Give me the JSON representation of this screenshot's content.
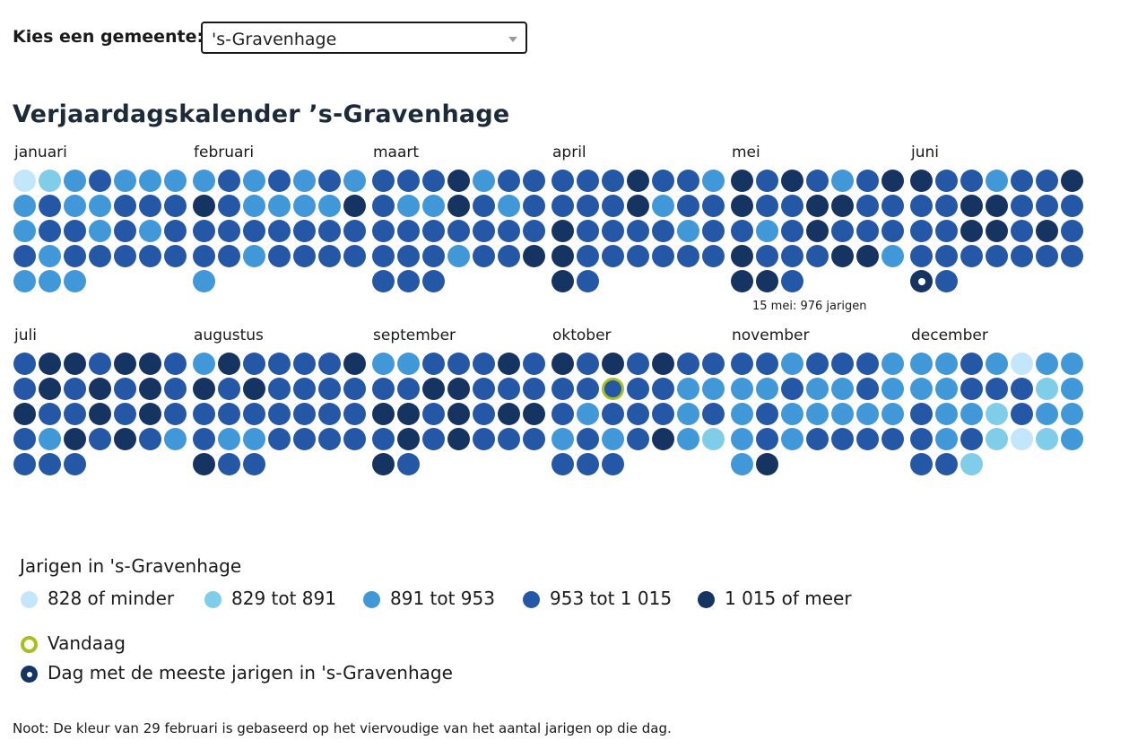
{
  "selector": {
    "label": "Kies een gemeente:",
    "value": "'s-Gravenhage"
  },
  "title": "Verjaardagskalender ’s-Gravenhage",
  "colors": {
    "c1": "#c3e6fb",
    "c2": "#7fcde9",
    "c3": "#4198d8",
    "c4": "#2457a6",
    "c5": "#163461",
    "today": "#a6c11d"
  },
  "today": {
    "month": 10,
    "day": 10
  },
  "max_day": {
    "month": 6,
    "day": 29
  },
  "tooltip": "15 mei: 976 jarigen",
  "months": [
    {
      "name": "januari",
      "days": [
        1,
        2,
        3,
        4,
        3,
        3,
        3,
        3,
        4,
        3,
        3,
        4,
        4,
        4,
        3,
        4,
        4,
        3,
        4,
        3,
        4,
        4,
        3,
        4,
        4,
        4,
        4,
        4,
        3,
        3,
        3
      ]
    },
    {
      "name": "februari",
      "days": [
        3,
        4,
        3,
        4,
        3,
        4,
        3,
        5,
        4,
        3,
        3,
        3,
        3,
        5,
        4,
        4,
        4,
        4,
        4,
        4,
        4,
        4,
        4,
        3,
        4,
        4,
        4,
        4,
        3
      ]
    },
    {
      "name": "maart",
      "days": [
        4,
        4,
        4,
        5,
        3,
        4,
        4,
        4,
        3,
        3,
        5,
        4,
        3,
        4,
        4,
        4,
        4,
        4,
        4,
        4,
        4,
        4,
        4,
        4,
        3,
        4,
        4,
        5,
        4,
        4,
        4
      ]
    },
    {
      "name": "april",
      "days": [
        4,
        4,
        4,
        5,
        4,
        4,
        3,
        4,
        4,
        4,
        5,
        3,
        4,
        4,
        5,
        4,
        4,
        4,
        4,
        3,
        4,
        5,
        4,
        4,
        4,
        4,
        4,
        4,
        5,
        4
      ]
    },
    {
      "name": "mei",
      "days": [
        5,
        4,
        5,
        4,
        3,
        4,
        5,
        5,
        4,
        4,
        5,
        5,
        4,
        4,
        4,
        3,
        4,
        5,
        4,
        4,
        4,
        5,
        4,
        4,
        4,
        5,
        5,
        3,
        5,
        5,
        4
      ]
    },
    {
      "name": "juni",
      "days": [
        5,
        4,
        4,
        3,
        4,
        4,
        5,
        4,
        4,
        5,
        5,
        4,
        4,
        4,
        4,
        4,
        5,
        5,
        4,
        5,
        4,
        4,
        4,
        4,
        4,
        4,
        4,
        4,
        5,
        4
      ]
    },
    {
      "name": "juli",
      "days": [
        4,
        5,
        5,
        4,
        5,
        5,
        4,
        4,
        5,
        4,
        5,
        4,
        5,
        4,
        5,
        4,
        4,
        5,
        4,
        5,
        4,
        4,
        3,
        5,
        4,
        5,
        4,
        3,
        4,
        4,
        4
      ]
    },
    {
      "name": "augustus",
      "days": [
        3,
        5,
        4,
        4,
        4,
        4,
        5,
        5,
        4,
        5,
        4,
        4,
        4,
        4,
        4,
        4,
        4,
        4,
        4,
        4,
        4,
        4,
        3,
        3,
        4,
        4,
        4,
        4,
        5,
        4,
        4
      ]
    },
    {
      "name": "september",
      "days": [
        3,
        3,
        4,
        4,
        4,
        5,
        4,
        4,
        4,
        5,
        5,
        4,
        4,
        4,
        5,
        5,
        4,
        5,
        4,
        5,
        5,
        4,
        5,
        4,
        5,
        4,
        4,
        4,
        5,
        4
      ]
    },
    {
      "name": "oktober",
      "days": [
        5,
        4,
        5,
        4,
        5,
        4,
        4,
        4,
        4,
        4,
        4,
        4,
        3,
        3,
        4,
        3,
        4,
        4,
        4,
        3,
        4,
        3,
        4,
        3,
        4,
        5,
        3,
        2,
        4,
        4,
        4
      ]
    },
    {
      "name": "november",
      "days": [
        4,
        4,
        3,
        4,
        4,
        4,
        3,
        3,
        3,
        4,
        3,
        3,
        4,
        3,
        3,
        4,
        3,
        3,
        3,
        3,
        3,
        3,
        4,
        3,
        4,
        4,
        4,
        4,
        3,
        5
      ]
    },
    {
      "name": "december",
      "days": [
        3,
        3,
        4,
        3,
        1,
        3,
        3,
        3,
        3,
        4,
        4,
        4,
        2,
        3,
        4,
        3,
        3,
        2,
        4,
        3,
        3,
        4,
        3,
        4,
        2,
        1,
        2,
        3,
        4,
        4,
        2
      ]
    }
  ],
  "legend": {
    "title": "Jarigen in 's-Gravenhage",
    "items": [
      {
        "label": "828 of minder",
        "color": "#c3e6fb"
      },
      {
        "label": "829 tot 891",
        "color": "#7fcde9"
      },
      {
        "label": "891 tot 953",
        "color": "#4198d8"
      },
      {
        "label": "953 tot 1 015",
        "color": "#2457a6"
      },
      {
        "label": "1 015 of meer",
        "color": "#163461"
      }
    ],
    "today_label": "Vandaag",
    "max_label": "Dag met de meeste jarigen in 's-Gravenhage"
  },
  "note": "Noot: De kleur van 29 februari is gebaseerd op het viervoudige van het aantal jarigen op die dag."
}
